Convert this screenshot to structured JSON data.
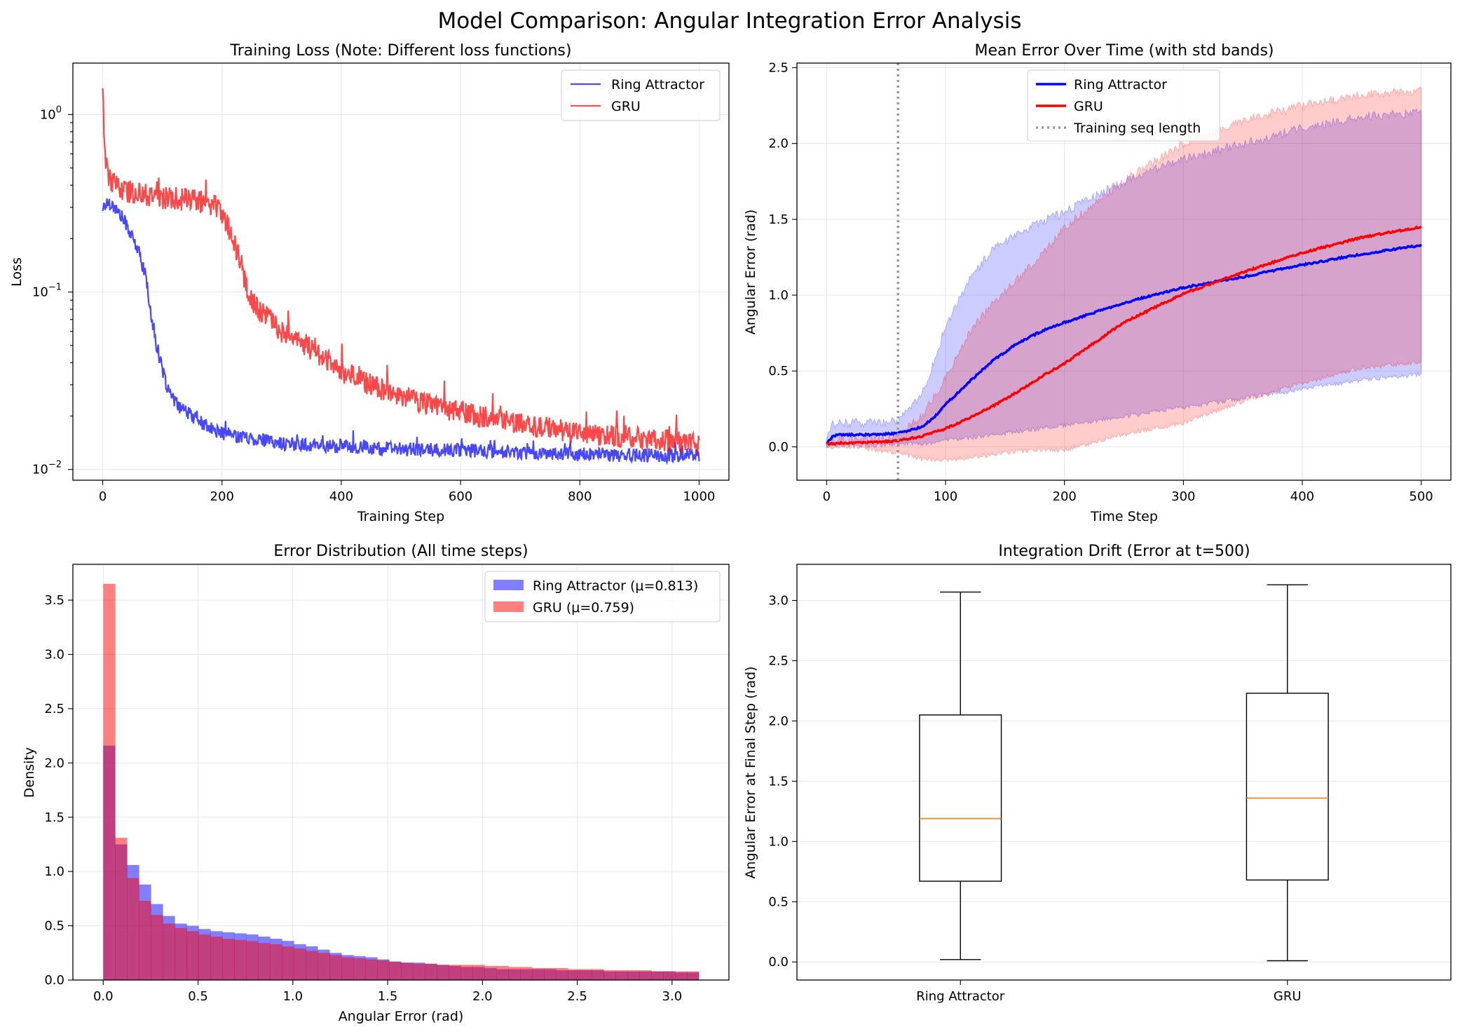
{
  "figure": {
    "title": "Model Comparison: Angular Integration Error Analysis"
  },
  "colors": {
    "ring": "#0000ff",
    "gru": "#ff0000",
    "median": "#ff7f0e",
    "vline": "#999999"
  },
  "chart_data": [
    {
      "id": "training_loss",
      "type": "line",
      "title": "Training Loss (Note: Different loss functions)",
      "xlabel": "Training Step",
      "ylabel": "Loss",
      "yscale": "log",
      "xlim": [
        -50,
        1050
      ],
      "ylim": [
        0.0087,
        1.95
      ],
      "xticks": [
        0,
        200,
        400,
        600,
        800,
        1000
      ],
      "yticks": [
        {
          "value": 0.01,
          "base": "10",
          "exp": "−2"
        },
        {
          "value": 0.1,
          "base": "10",
          "exp": "−1"
        },
        {
          "value": 1,
          "base": "10",
          "exp": "0"
        }
      ],
      "grid": true,
      "legend": "top-right",
      "series": [
        {
          "name": "Ring Attractor",
          "color": "#0000ff",
          "x": [
            0,
            10,
            20,
            30,
            40,
            50,
            60,
            70,
            80,
            90,
            100,
            110,
            120,
            140,
            160,
            180,
            200,
            250,
            300,
            400,
            500,
            600,
            700,
            800,
            900,
            1000
          ],
          "y": [
            0.3,
            0.32,
            0.3,
            0.27,
            0.24,
            0.2,
            0.17,
            0.13,
            0.08,
            0.05,
            0.036,
            0.028,
            0.024,
            0.021,
            0.019,
            0.017,
            0.016,
            0.015,
            0.014,
            0.0135,
            0.013,
            0.0128,
            0.0125,
            0.0122,
            0.012,
            0.012
          ],
          "noise": 0.09
        },
        {
          "name": "GRU",
          "color": "#ff0000",
          "x": [
            0,
            2,
            5,
            10,
            20,
            40,
            60,
            100,
            150,
            190,
            200,
            210,
            220,
            230,
            240,
            250,
            260,
            280,
            300,
            350,
            400,
            450,
            500,
            600,
            700,
            800,
            900,
            1000
          ],
          "y": [
            1.5,
            0.9,
            0.52,
            0.45,
            0.4,
            0.37,
            0.36,
            0.34,
            0.33,
            0.31,
            0.28,
            0.24,
            0.19,
            0.15,
            0.11,
            0.09,
            0.08,
            0.07,
            0.06,
            0.048,
            0.036,
            0.03,
            0.026,
            0.021,
            0.018,
            0.016,
            0.015,
            0.014
          ],
          "noise": 0.15
        }
      ]
    },
    {
      "id": "mean_error",
      "type": "line",
      "title": "Mean Error Over Time (with std bands)",
      "xlabel": "Time Step",
      "ylabel": "Angular Error (rad)",
      "xlim": [
        -25,
        525
      ],
      "ylim": [
        -0.22,
        2.53
      ],
      "xticks": [
        0,
        100,
        200,
        300,
        400,
        500
      ],
      "yticks": [
        0.0,
        0.5,
        1.0,
        1.5,
        2.0,
        2.5
      ],
      "grid": true,
      "legend": "upper-center",
      "vline": {
        "x": 60,
        "label": "Training seq length"
      },
      "series": [
        {
          "name": "Ring Attractor",
          "color": "#0000ff",
          "x": [
            0,
            5,
            10,
            20,
            40,
            60,
            80,
            90,
            100,
            120,
            140,
            160,
            180,
            200,
            250,
            300,
            350,
            400,
            450,
            500
          ],
          "mean": [
            0.02,
            0.07,
            0.08,
            0.08,
            0.08,
            0.09,
            0.13,
            0.19,
            0.28,
            0.43,
            0.57,
            0.68,
            0.76,
            0.82,
            0.95,
            1.05,
            1.12,
            1.2,
            1.27,
            1.33
          ],
          "upper": [
            0.05,
            0.15,
            0.16,
            0.16,
            0.16,
            0.17,
            0.35,
            0.55,
            0.8,
            1.1,
            1.3,
            1.4,
            1.48,
            1.55,
            1.75,
            1.9,
            2.0,
            2.1,
            2.18,
            2.2
          ],
          "lower": [
            0.0,
            0.01,
            0.01,
            0.01,
            0.01,
            0.02,
            0.02,
            0.03,
            0.04,
            0.06,
            0.08,
            0.1,
            0.12,
            0.14,
            0.2,
            0.26,
            0.32,
            0.38,
            0.44,
            0.48
          ]
        },
        {
          "name": "GRU",
          "color": "#ff0000",
          "x": [
            0,
            5,
            10,
            20,
            40,
            60,
            80,
            100,
            120,
            140,
            160,
            180,
            200,
            250,
            300,
            350,
            400,
            450,
            500
          ],
          "mean": [
            0.02,
            0.02,
            0.025,
            0.025,
            0.03,
            0.04,
            0.07,
            0.12,
            0.19,
            0.27,
            0.36,
            0.46,
            0.55,
            0.82,
            1.01,
            1.15,
            1.28,
            1.38,
            1.45
          ],
          "upper": [
            0.04,
            0.05,
            0.05,
            0.05,
            0.05,
            0.07,
            0.2,
            0.45,
            0.75,
            0.95,
            1.1,
            1.25,
            1.45,
            1.75,
            2.0,
            2.15,
            2.25,
            2.32,
            2.35
          ],
          "lower": [
            0.0,
            0.0,
            0.0,
            0.0,
            -0.02,
            -0.04,
            -0.08,
            -0.09,
            -0.07,
            -0.05,
            -0.03,
            -0.02,
            -0.02,
            0.08,
            0.16,
            0.3,
            0.42,
            0.52,
            0.56
          ]
        }
      ]
    },
    {
      "id": "error_distribution",
      "type": "bar",
      "title": "Error Distribution (All time steps)",
      "xlabel": "Angular Error (rad)",
      "ylabel": "Density",
      "xlim": [
        -0.16,
        3.3
      ],
      "ylim": [
        0,
        3.83
      ],
      "xticks": [
        0.0,
        0.5,
        1.0,
        1.5,
        2.0,
        2.5,
        3.0
      ],
      "yticks": [
        0.0,
        0.5,
        1.0,
        1.5,
        2.0,
        2.5,
        3.0,
        3.5
      ],
      "grid": true,
      "legend": "top-right",
      "bin_range": [
        0,
        3.1416
      ],
      "series": [
        {
          "name": "Ring Attractor (μ=0.813)",
          "color": "#0000ff",
          "values": [
            2.16,
            1.25,
            1.06,
            0.88,
            0.7,
            0.59,
            0.52,
            0.5,
            0.47,
            0.45,
            0.44,
            0.43,
            0.42,
            0.4,
            0.38,
            0.36,
            0.33,
            0.31,
            0.28,
            0.25,
            0.23,
            0.22,
            0.21,
            0.19,
            0.17,
            0.16,
            0.16,
            0.15,
            0.14,
            0.13,
            0.12,
            0.12,
            0.11,
            0.1,
            0.1,
            0.1,
            0.1,
            0.1,
            0.09,
            0.09,
            0.09,
            0.09,
            0.08,
            0.08,
            0.08,
            0.08,
            0.08,
            0.08,
            0.07,
            0.07
          ]
        },
        {
          "name": "GRU (μ=0.759)",
          "color": "#ff0000",
          "values": [
            3.65,
            1.31,
            0.94,
            0.73,
            0.6,
            0.52,
            0.48,
            0.45,
            0.42,
            0.4,
            0.38,
            0.37,
            0.36,
            0.34,
            0.33,
            0.31,
            0.29,
            0.27,
            0.25,
            0.23,
            0.21,
            0.2,
            0.19,
            0.18,
            0.17,
            0.16,
            0.15,
            0.15,
            0.14,
            0.14,
            0.14,
            0.14,
            0.13,
            0.13,
            0.12,
            0.12,
            0.11,
            0.11,
            0.11,
            0.1,
            0.1,
            0.1,
            0.09,
            0.09,
            0.09,
            0.09,
            0.08,
            0.08,
            0.08,
            0.08
          ]
        }
      ]
    },
    {
      "id": "integration_drift",
      "type": "box",
      "title": "Integration Drift (Error at t=500)",
      "xlabel": "",
      "ylabel": "Angular Error at Final Step (rad)",
      "ylim": [
        -0.15,
        3.3
      ],
      "yticks": [
        0.0,
        0.5,
        1.0,
        1.5,
        2.0,
        2.5,
        3.0
      ],
      "grid": true,
      "categories": [
        "Ring Attractor",
        "GRU"
      ],
      "boxes": [
        {
          "whisker_low": 0.02,
          "q1": 0.67,
          "median": 1.19,
          "q3": 2.05,
          "whisker_high": 3.07
        },
        {
          "whisker_low": 0.01,
          "q1": 0.68,
          "median": 1.36,
          "q3": 2.23,
          "whisker_high": 3.13
        }
      ]
    }
  ]
}
